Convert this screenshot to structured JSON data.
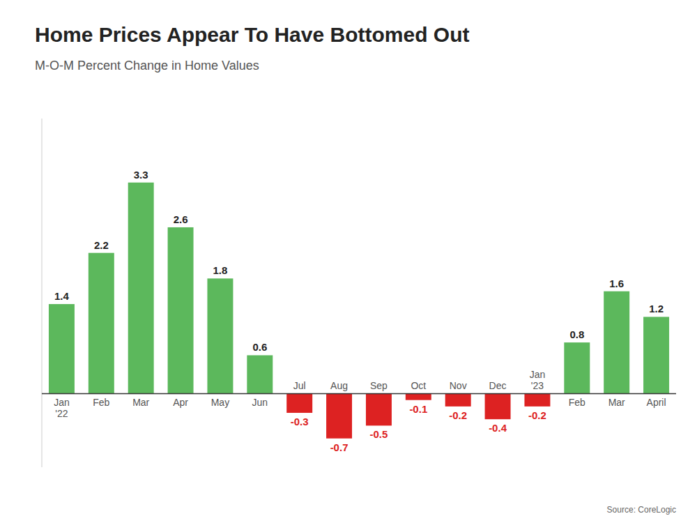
{
  "chart_data": {
    "type": "bar",
    "title": "Home Prices Appear To Have Bottomed Out",
    "subtitle": "M-O-M Percent Change in Home Values",
    "source": "Source: CoreLogic",
    "categories": [
      "Jan\n'22",
      "Feb",
      "Mar",
      "Apr",
      "May",
      "Jun",
      "Jul",
      "Aug",
      "Sep",
      "Oct",
      "Nov",
      "Dec",
      "Jan\n'23",
      "Feb",
      "Mar",
      "April"
    ],
    "values": [
      1.4,
      2.2,
      3.3,
      2.6,
      1.8,
      0.6,
      -0.3,
      -0.7,
      -0.5,
      -0.1,
      -0.2,
      -0.4,
      -0.2,
      0.8,
      1.6,
      1.2
    ],
    "colors": [
      "#5cb85c",
      "#5cb85c",
      "#5cb85c",
      "#5cb85c",
      "#5cb85c",
      "#5cb85c",
      "#dd2222",
      "#dd2222",
      "#dd2222",
      "#dd2222",
      "#dd2222",
      "#dd2222",
      "#dd2222",
      "#5cb85c",
      "#5cb85c",
      "#5cb85c"
    ],
    "ylim": [
      -1.15,
      4.3
    ],
    "data_labels": true,
    "tick_labels": "x",
    "grid": false
  }
}
